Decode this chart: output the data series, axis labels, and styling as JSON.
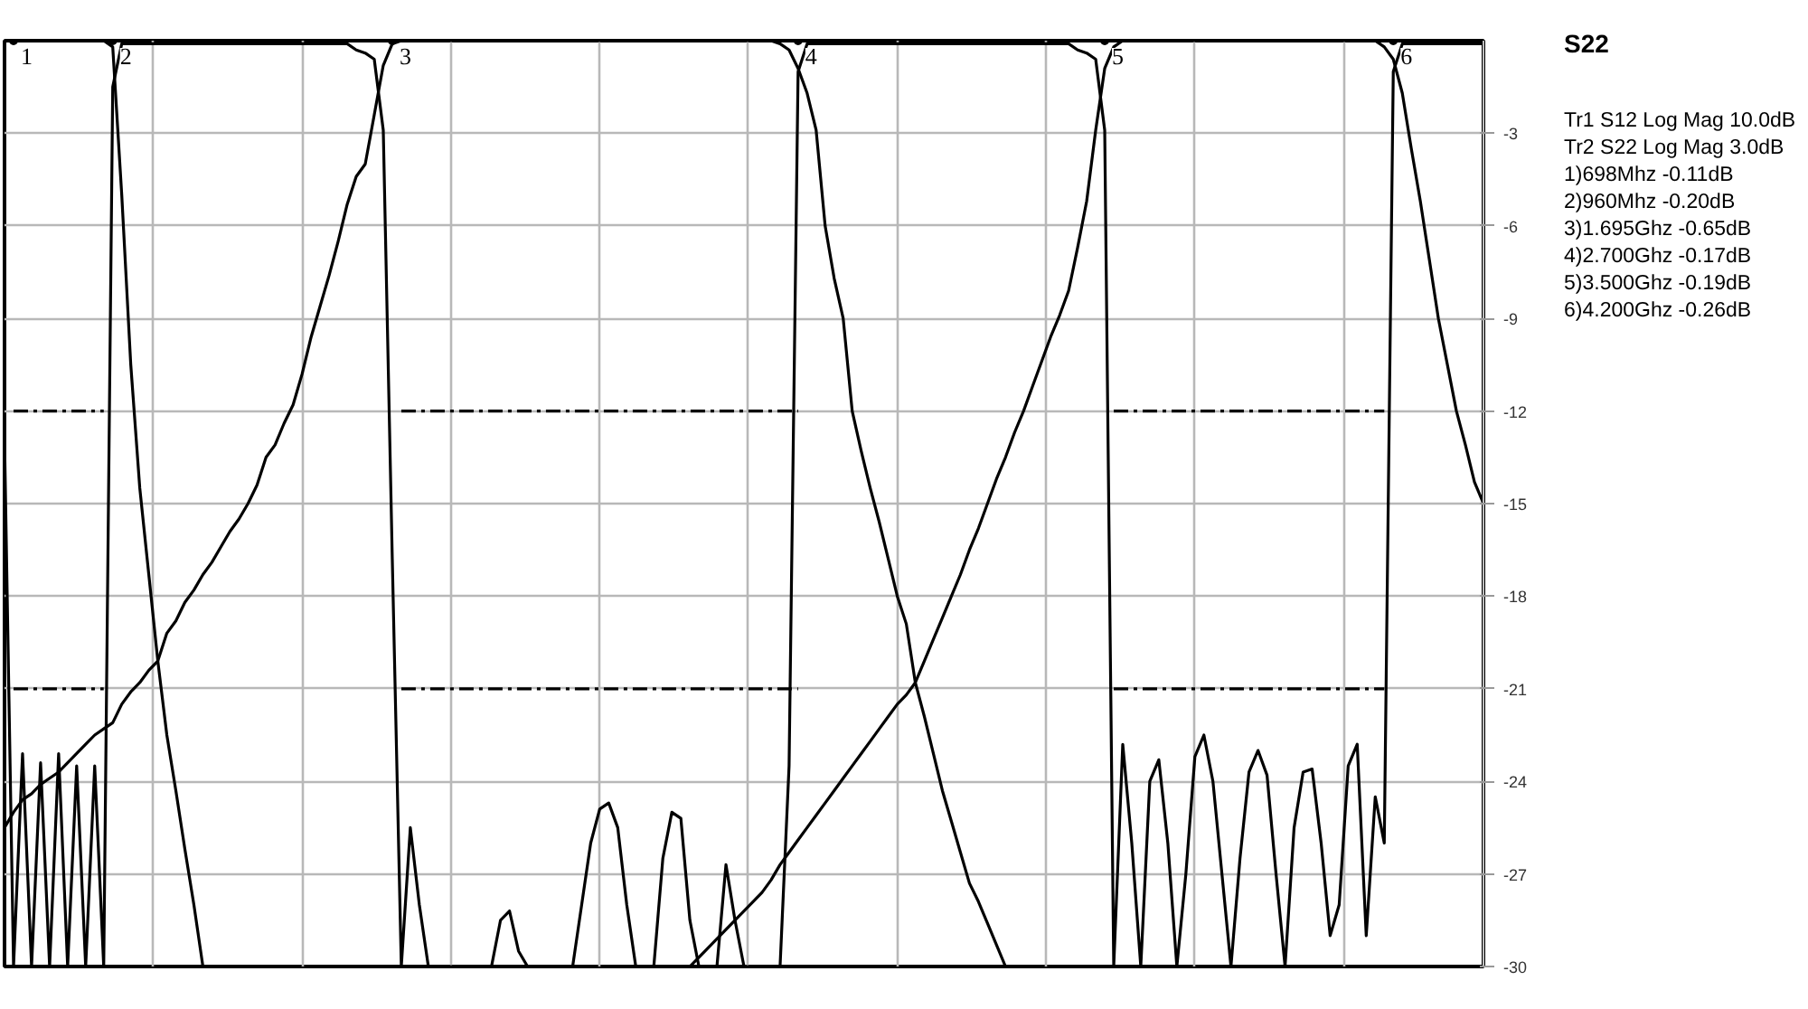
{
  "chart_data": {
    "type": "line",
    "categories": [
      null,
      null,
      null,
      null,
      null,
      null,
      null,
      null,
      null,
      null,
      null,
      null,
      null,
      null,
      null,
      null,
      null,
      null,
      null,
      null,
      null,
      null,
      null,
      null,
      null,
      null,
      null,
      null,
      null,
      null,
      null,
      null,
      null,
      null,
      null,
      null,
      null,
      null,
      null,
      null,
      null,
      null,
      null,
      null,
      null,
      null,
      null,
      null,
      null,
      null,
      null,
      null,
      null,
      null,
      null,
      null,
      null,
      null,
      null,
      null,
      null,
      null,
      null,
      null,
      null,
      null,
      null,
      null,
      null,
      null,
      null,
      null,
      null,
      null,
      null,
      null,
      null,
      null,
      null,
      null,
      null,
      null,
      null,
      null,
      null,
      null,
      null,
      null,
      null,
      null,
      null,
      null,
      null,
      null,
      null,
      null,
      null,
      null,
      null,
      null,
      null,
      null,
      null,
      null,
      null,
      null,
      null,
      null,
      null,
      null,
      null,
      null,
      null,
      null,
      null,
      null,
      null,
      null,
      null,
      null,
      null,
      null,
      null,
      null,
      null,
      null,
      null,
      null,
      null,
      null,
      null,
      null,
      null,
      null,
      null,
      null,
      null,
      null,
      null,
      null,
      null,
      null,
      null,
      null,
      null,
      null,
      null,
      null,
      null,
      null,
      null,
      null,
      null,
      null,
      null,
      null,
      null,
      null,
      null,
      null,
      null,
      null,
      null,
      null,
      null
    ],
    "ylim": [
      -30,
      0
    ],
    "yticks": [
      -3,
      -6,
      -9,
      -12,
      -15,
      -18,
      -21,
      -24,
      -27,
      -30
    ],
    "grid": true,
    "marker": "none",
    "line_style": "solid",
    "series": [
      {
        "color": "#000000",
        "values": [
          -12.9,
          -30,
          -23.1,
          -30,
          -23.4,
          -30,
          -23.1,
          -30,
          -23.5,
          -30,
          -23.5,
          -30,
          -1.5,
          -0.1,
          -0.1,
          -0.1,
          -0.1,
          -0.1,
          -0.1,
          -0.1,
          -0.1,
          -0.1,
          -0.1,
          -0.1,
          -0.1,
          -0.1,
          -0.1,
          -0.1,
          -0.1,
          -0.1,
          -0.1,
          -0.1,
          -0.1,
          -0.1,
          -0.1,
          -0.1,
          -0.1,
          -0.1,
          -0.1,
          -0.3,
          -0.4,
          -0.6,
          -2.9,
          -16.8,
          -30,
          -25.5,
          -28,
          -30,
          -30,
          -30,
          -30,
          -30,
          -30,
          -30,
          -30,
          -28.5,
          -28.2,
          -29.5,
          -30,
          -30,
          -30,
          -30,
          -30,
          -30,
          -28,
          -26,
          -24.9,
          -24.7,
          -25.5,
          -28,
          -30,
          -30,
          -30,
          -26.5,
          -25,
          -25.2,
          -28.5,
          -30,
          -30,
          -30,
          -26.7,
          -28.5,
          -30,
          -30,
          -30,
          -30,
          -30,
          -23.5,
          -1,
          -0.1,
          -0.1,
          -0.1,
          -0.1,
          -0.1,
          -0.1,
          -0.1,
          -0.1,
          -0.1,
          -0.1,
          -0.1,
          -0.1,
          -0.1,
          -0.1,
          -0.1,
          -0.1,
          -0.1,
          -0.1,
          -0.1,
          -0.1,
          -0.1,
          -0.1,
          -0.1,
          -0.1,
          -0.1,
          -0.1,
          -0.1,
          -0.1,
          -0.1,
          -0.1,
          -0.3,
          -0.4,
          -0.6,
          -2.9,
          -30,
          -22.8,
          -26,
          -30,
          -24,
          -23.3,
          -26,
          -30,
          -27,
          -23.2,
          -22.5,
          -24,
          -27,
          -30,
          -26.5,
          -23.7,
          -23.0,
          -23.8,
          -27,
          -30,
          -25.5,
          -23.7,
          -23.6,
          -26,
          -29,
          -28,
          -23.5,
          -22.8,
          -29,
          -24.5,
          -26,
          -1,
          -0.1,
          -0.1,
          -0.1,
          -0.1,
          -0.1,
          -0.1,
          -0.1,
          -0.1,
          -0.1,
          -0.1
        ]
      },
      {
        "color": "#000000",
        "values": [
          0,
          0,
          0,
          0,
          0,
          0,
          0,
          0,
          0,
          0,
          0,
          0,
          -0.2,
          -5,
          -10.5,
          -14.5,
          -17.3,
          -20.1,
          -22.5,
          -24.3,
          -26.2,
          -28,
          -30,
          null,
          null,
          null,
          null,
          null,
          null,
          null,
          null,
          null,
          null,
          null,
          null,
          null,
          null,
          null,
          null,
          null,
          null,
          null,
          null,
          null,
          null,
          null,
          null,
          null,
          null,
          null,
          null,
          null,
          null,
          null,
          null,
          null,
          null,
          null,
          null,
          null,
          null,
          null,
          null,
          null,
          null,
          null,
          null,
          null,
          null,
          null,
          null,
          null,
          null,
          null,
          null,
          null,
          null,
          null,
          null,
          null,
          null,
          null,
          null,
          null,
          null,
          null,
          null,
          null,
          null,
          null,
          null,
          null,
          null,
          null,
          null,
          null,
          null,
          null,
          null,
          null,
          null,
          null,
          null,
          null,
          null,
          null,
          null,
          null,
          null,
          null,
          null,
          null,
          null,
          null,
          null,
          null,
          null,
          null,
          null,
          null,
          null,
          null,
          null,
          null,
          null,
          null,
          null,
          null,
          null,
          null,
          null,
          null,
          null,
          null,
          null,
          null,
          null,
          null,
          null,
          null,
          null,
          null,
          null,
          null,
          null,
          null,
          null,
          null,
          null,
          null,
          null,
          null,
          null,
          null,
          null,
          null,
          null,
          null,
          null,
          null,
          null,
          null,
          null,
          null,
          null
        ]
      },
      {
        "color": "#000000",
        "values": [
          -25.5,
          -25.0,
          -24.6,
          -24.4,
          -24.1,
          -23.9,
          -23.7,
          -23.4,
          -23.1,
          -22.8,
          -22.5,
          -22.3,
          -22.1,
          -21.5,
          -21.1,
          -20.8,
          -20.4,
          -20.1,
          -19.2,
          -18.8,
          -18.2,
          -17.8,
          -17.3,
          -16.9,
          -16.4,
          -15.9,
          -15.5,
          -15.0,
          -14.4,
          -13.5,
          -13.1,
          -12.4,
          -11.8,
          -10.8,
          -9.6,
          -8.6,
          -7.6,
          -6.5,
          -5.3,
          -4.4,
          -4.0,
          -2.4,
          -0.8,
          -0.1,
          0,
          0,
          0,
          0,
          0,
          0,
          0,
          0,
          0,
          0,
          0,
          0,
          0,
          0,
          0,
          0,
          0,
          0,
          0,
          0,
          0,
          0,
          0,
          0,
          0,
          0,
          0,
          0,
          0,
          0,
          0,
          0,
          0,
          0,
          0,
          0,
          0,
          0,
          0,
          0,
          0,
          0,
          -0.1,
          -0.3,
          -0.9,
          -1.7,
          -2.9,
          -6.0,
          -7.7,
          -9.0,
          -12.0,
          -13.3,
          -14.5,
          -15.6,
          -16.8,
          -18.0,
          -18.9,
          -20.8,
          -21.9,
          -23.1,
          -24.3,
          -25.3,
          -26.3,
          -27.3,
          -27.9,
          -28.6,
          -29.3,
          -30,
          null,
          null,
          null,
          null,
          null,
          null,
          null,
          null,
          null,
          null,
          null,
          null,
          null,
          null,
          null,
          null,
          null,
          null,
          null,
          null,
          null,
          null,
          null,
          null,
          null,
          null,
          null,
          null,
          null,
          null,
          null,
          null,
          null,
          null,
          null,
          null,
          null,
          null,
          null,
          null,
          null,
          null,
          null,
          null,
          null,
          null,
          null,
          null,
          null,
          null,
          null,
          null,
          null
        ]
      },
      {
        "color": "#000000",
        "values": [
          null,
          null,
          null,
          null,
          null,
          null,
          null,
          null,
          null,
          null,
          null,
          null,
          null,
          null,
          null,
          null,
          null,
          null,
          null,
          null,
          null,
          null,
          null,
          null,
          null,
          null,
          null,
          null,
          null,
          null,
          null,
          null,
          null,
          null,
          null,
          null,
          null,
          null,
          null,
          null,
          null,
          null,
          null,
          null,
          null,
          null,
          null,
          null,
          null,
          null,
          null,
          null,
          null,
          null,
          null,
          null,
          null,
          null,
          null,
          null,
          null,
          null,
          null,
          null,
          null,
          null,
          null,
          null,
          null,
          null,
          null,
          null,
          null,
          null,
          null,
          null,
          -30,
          -29.7,
          -29.4,
          -29.1,
          -28.8,
          -28.5,
          -28.2,
          -27.9,
          -27.6,
          -27.2,
          -26.7,
          -26.3,
          -25.9,
          -25.5,
          -25.1,
          -24.7,
          -24.3,
          -23.9,
          -23.5,
          -23.1,
          -22.7,
          -22.3,
          -21.9,
          -21.5,
          -21.2,
          -20.8,
          -20.1,
          -19.4,
          -18.7,
          -18.0,
          -17.3,
          -16.5,
          -15.8,
          -15.0,
          -14.2,
          -13.5,
          -12.7,
          -12.0,
          -11.2,
          -10.4,
          -9.6,
          -8.9,
          -8.1,
          -6.7,
          -5.2,
          -2.9,
          -0.9,
          -0.2,
          0,
          0,
          0,
          0,
          0,
          0,
          0,
          0,
          0,
          0,
          0,
          0,
          0,
          0,
          0,
          0,
          0,
          0,
          0,
          0,
          0,
          0,
          0,
          0,
          0,
          0,
          0,
          0,
          0,
          -0.2,
          -0.6,
          -1.7,
          -3.5,
          -5.2,
          -7.1,
          -9.0,
          -10.5,
          -12.0,
          -13.1,
          -14.3,
          -15.0
        ]
      },
      {
        "color": "#000000",
        "line_style": "dashed",
        "values": [
          null,
          -12,
          -12,
          -12,
          -12,
          -12,
          -12,
          -12,
          -12,
          -12,
          -12,
          -12,
          null,
          null,
          null,
          null,
          null,
          null,
          null,
          null,
          null,
          null,
          null,
          null,
          null,
          null,
          null,
          null,
          null,
          null,
          null,
          null,
          null,
          null,
          null,
          null,
          null,
          null,
          null,
          null,
          null,
          null,
          null,
          null,
          -12,
          -12,
          -12,
          -12,
          -12,
          -12,
          -12,
          -12,
          -12,
          -12,
          -12,
          -12,
          -12,
          -12,
          -12,
          -12,
          -12,
          -12,
          -12,
          -12,
          -12,
          -12,
          -12,
          -12,
          -12,
          -12,
          -12,
          -12,
          -12,
          -12,
          -12,
          -12,
          -12,
          -12,
          -12,
          -12,
          -12,
          -12,
          -12,
          -12,
          -12,
          -12,
          -12,
          -12,
          -12,
          null,
          null,
          null,
          null,
          null,
          null,
          null,
          null,
          null,
          null,
          null,
          null,
          null,
          null,
          null,
          null,
          null,
          null,
          null,
          null,
          null,
          null,
          null,
          null,
          null,
          null,
          null,
          null,
          null,
          null,
          null,
          null,
          null,
          null,
          -12,
          -12,
          -12,
          -12,
          -12,
          -12,
          -12,
          -12,
          -12,
          -12,
          -12,
          -12,
          -12,
          -12,
          -12,
          -12,
          -12,
          -12,
          -12,
          -12,
          -12,
          -12,
          -12,
          -12,
          -12,
          -12,
          -12,
          -12,
          -12,
          -12,
          -12,
          null,
          null,
          null,
          null,
          null,
          null,
          null,
          null,
          null,
          null,
          null
        ]
      },
      {
        "color": "#000000",
        "line_style": "dashed",
        "values": [
          null,
          -21,
          -21,
          -21,
          -21,
          -21,
          -21,
          -21,
          -21,
          -21,
          -21,
          -21,
          null,
          null,
          null,
          null,
          null,
          null,
          null,
          null,
          null,
          null,
          null,
          null,
          null,
          null,
          null,
          null,
          null,
          null,
          null,
          null,
          null,
          null,
          null,
          null,
          null,
          null,
          null,
          null,
          null,
          null,
          null,
          null,
          -21,
          -21,
          -21,
          -21,
          -21,
          -21,
          -21,
          -21,
          -21,
          -21,
          -21,
          -21,
          -21,
          -21,
          -21,
          -21,
          -21,
          -21,
          -21,
          -21,
          -21,
          -21,
          -21,
          -21,
          -21,
          -21,
          -21,
          -21,
          -21,
          -21,
          -21,
          -21,
          -21,
          -21,
          -21,
          -21,
          -21,
          -21,
          -21,
          -21,
          -21,
          -21,
          -21,
          -21,
          -21,
          null,
          null,
          null,
          null,
          null,
          null,
          null,
          null,
          null,
          null,
          null,
          null,
          null,
          null,
          null,
          null,
          null,
          null,
          null,
          null,
          null,
          null,
          null,
          null,
          null,
          null,
          null,
          null,
          null,
          null,
          null,
          null,
          null,
          null,
          -21,
          -21,
          -21,
          -21,
          -21,
          -21,
          -21,
          -21,
          -21,
          -21,
          -21,
          -21,
          -21,
          -21,
          -21,
          -21,
          -21,
          -21,
          -21,
          -21,
          -21,
          -21,
          -21,
          -21,
          -21,
          -21,
          -21,
          -21,
          -21,
          -21,
          -21,
          null,
          null,
          null,
          null,
          null,
          null,
          null,
          null,
          null,
          null,
          null
        ]
      },
      {
        "type": "scatter",
        "marker": "circle",
        "color": "#000000",
        "name": "1",
        "values": [
          null,
          0,
          null,
          null,
          null,
          null,
          null,
          null,
          null,
          null,
          null,
          null,
          null,
          null,
          null,
          null,
          null,
          null,
          null,
          null,
          null,
          null,
          null,
          null,
          null,
          null,
          null,
          null,
          null,
          null,
          null,
          null,
          null,
          null,
          null,
          null,
          null,
          null,
          null,
          null,
          null,
          null,
          null,
          null,
          null,
          null,
          null,
          null,
          null,
          null,
          null,
          null,
          null,
          null,
          null,
          null,
          null,
          null,
          null,
          null,
          null,
          null,
          null,
          null,
          null,
          null,
          null,
          null,
          null,
          null,
          null,
          null,
          null,
          null,
          null,
          null,
          null,
          null,
          null,
          null,
          null,
          null,
          null,
          null,
          null,
          null,
          null,
          null,
          null,
          null,
          null,
          null,
          null,
          null,
          null,
          null,
          null,
          null,
          null,
          null,
          null,
          null,
          null,
          null,
          null,
          null,
          null,
          null,
          null,
          null,
          null,
          null,
          null,
          null,
          null,
          null,
          null,
          null,
          null,
          null,
          null,
          null,
          null,
          null,
          null,
          null,
          null,
          null,
          null,
          null,
          null,
          null,
          null,
          null,
          null,
          null,
          null,
          null,
          null,
          null,
          null,
          null,
          null,
          null,
          null,
          null,
          null,
          null,
          null,
          null,
          null,
          null,
          null,
          null,
          null,
          null,
          null,
          null,
          null,
          null,
          null,
          null,
          null,
          null,
          null
        ]
      },
      {
        "type": "scatter",
        "marker": "circle",
        "color": "#000000",
        "name": "2",
        "values": [
          null,
          null,
          null,
          null,
          null,
          null,
          null,
          null,
          null,
          null,
          null,
          null,
          0,
          null,
          null,
          null,
          null,
          null,
          null,
          null,
          null,
          null,
          null,
          null,
          null,
          null,
          null,
          null,
          null,
          null,
          null,
          null,
          null,
          null,
          null,
          null,
          null,
          null,
          null,
          null,
          null,
          null,
          null,
          null,
          null,
          null,
          null,
          null,
          null,
          null,
          null,
          null,
          null,
          null,
          null,
          null,
          null,
          null,
          null,
          null,
          null,
          null,
          null,
          null,
          null,
          null,
          null,
          null,
          null,
          null,
          null,
          null,
          null,
          null,
          null,
          null,
          null,
          null,
          null,
          null,
          null,
          null,
          null,
          null,
          null,
          null,
          null,
          null,
          null,
          null,
          null,
          null,
          null,
          null,
          null,
          null,
          null,
          null,
          null,
          null,
          null,
          null,
          null,
          null,
          null,
          null,
          null,
          null,
          null,
          null,
          null,
          null,
          null,
          null,
          null,
          null,
          null,
          null,
          null,
          null,
          null,
          null,
          null,
          null,
          null,
          null,
          null,
          null,
          null,
          null,
          null,
          null,
          null,
          null,
          null,
          null,
          null,
          null,
          null,
          null,
          null,
          null,
          null,
          null,
          null,
          null,
          null,
          null,
          null,
          null,
          null,
          null,
          null,
          null,
          null,
          null,
          null,
          null,
          null,
          null,
          null,
          null,
          null,
          null,
          null
        ]
      },
      {
        "type": "scatter",
        "marker": "circle",
        "color": "#000000",
        "name": "3",
        "values": [
          null,
          null,
          null,
          null,
          null,
          null,
          null,
          null,
          null,
          null,
          null,
          null,
          null,
          null,
          null,
          null,
          null,
          null,
          null,
          null,
          null,
          null,
          null,
          null,
          null,
          null,
          null,
          null,
          null,
          null,
          null,
          null,
          null,
          null,
          null,
          null,
          null,
          null,
          null,
          null,
          null,
          null,
          null,
          0,
          null,
          null,
          null,
          null,
          null,
          null,
          null,
          null,
          null,
          null,
          null,
          null,
          null,
          null,
          null,
          null,
          null,
          null,
          null,
          null,
          null,
          null,
          null,
          null,
          null,
          null,
          null,
          null,
          null,
          null,
          null,
          null,
          null,
          null,
          null,
          null,
          null,
          null,
          null,
          null,
          null,
          null,
          null,
          null,
          null,
          null,
          null,
          null,
          null,
          null,
          null,
          null,
          null,
          null,
          null,
          null,
          null,
          null,
          null,
          null,
          null,
          null,
          null,
          null,
          null,
          null,
          null,
          null,
          null,
          null,
          null,
          null,
          null,
          null,
          null,
          null,
          null,
          null,
          null,
          null,
          null,
          null,
          null,
          null,
          null,
          null,
          null,
          null,
          null,
          null,
          null,
          null,
          null,
          null,
          null,
          null,
          null,
          null,
          null,
          null,
          null,
          null,
          null,
          null,
          null,
          null,
          null,
          null,
          null,
          null,
          null,
          null,
          null,
          null,
          null,
          null,
          null,
          null,
          null,
          null,
          null
        ]
      },
      {
        "type": "scatter",
        "marker": "circle",
        "color": "#000000",
        "name": "4",
        "values": [
          null,
          null,
          null,
          null,
          null,
          null,
          null,
          null,
          null,
          null,
          null,
          null,
          null,
          null,
          null,
          null,
          null,
          null,
          null,
          null,
          null,
          null,
          null,
          null,
          null,
          null,
          null,
          null,
          null,
          null,
          null,
          null,
          null,
          null,
          null,
          null,
          null,
          null,
          null,
          null,
          null,
          null,
          null,
          null,
          null,
          null,
          null,
          null,
          null,
          null,
          null,
          null,
          null,
          null,
          null,
          null,
          null,
          null,
          null,
          null,
          null,
          null,
          null,
          null,
          null,
          null,
          null,
          null,
          null,
          null,
          null,
          null,
          null,
          null,
          null,
          null,
          null,
          null,
          null,
          null,
          null,
          null,
          null,
          null,
          null,
          null,
          null,
          null,
          0,
          null,
          null,
          null,
          null,
          null,
          null,
          null,
          null,
          null,
          null,
          null,
          null,
          null,
          null,
          null,
          null,
          null,
          null,
          null,
          null,
          null,
          null,
          null,
          null,
          null,
          null,
          null,
          null,
          null,
          null,
          null,
          null,
          null,
          null,
          null,
          null,
          null,
          null,
          null,
          null,
          null,
          null,
          null,
          null,
          null,
          null,
          null,
          null,
          null,
          null,
          null,
          null,
          null,
          null,
          null,
          null,
          null,
          null,
          null,
          null,
          null,
          null,
          null,
          null,
          null,
          null,
          null,
          null,
          null,
          null,
          null,
          null,
          null,
          null,
          null,
          null
        ]
      },
      {
        "type": "scatter",
        "marker": "circle",
        "color": "#000000",
        "name": "5",
        "values": [
          null,
          null,
          null,
          null,
          null,
          null,
          null,
          null,
          null,
          null,
          null,
          null,
          null,
          null,
          null,
          null,
          null,
          null,
          null,
          null,
          null,
          null,
          null,
          null,
          null,
          null,
          null,
          null,
          null,
          null,
          null,
          null,
          null,
          null,
          null,
          null,
          null,
          null,
          null,
          null,
          null,
          null,
          null,
          null,
          null,
          null,
          null,
          null,
          null,
          null,
          null,
          null,
          null,
          null,
          null,
          null,
          null,
          null,
          null,
          null,
          null,
          null,
          null,
          null,
          null,
          null,
          null,
          null,
          null,
          null,
          null,
          null,
          null,
          null,
          null,
          null,
          null,
          null,
          null,
          null,
          null,
          null,
          null,
          null,
          null,
          null,
          null,
          null,
          null,
          null,
          null,
          null,
          null,
          null,
          null,
          null,
          null,
          null,
          null,
          null,
          null,
          null,
          null,
          null,
          null,
          null,
          null,
          null,
          null,
          null,
          null,
          null,
          null,
          null,
          null,
          null,
          null,
          null,
          null,
          null,
          null,
          null,
          0,
          null,
          null,
          null,
          null,
          null,
          null,
          null,
          null,
          null,
          null,
          null,
          null,
          null,
          null,
          null,
          null,
          null,
          null,
          null,
          null,
          null,
          null,
          null,
          null,
          null,
          null,
          null,
          null,
          null,
          null,
          null,
          null,
          null,
          null,
          null,
          null,
          null,
          null,
          null,
          null,
          null,
          null
        ]
      },
      {
        "type": "scatter",
        "marker": "circle",
        "color": "#000000",
        "name": "6",
        "values": [
          null,
          null,
          null,
          null,
          null,
          null,
          null,
          null,
          null,
          null,
          null,
          null,
          null,
          null,
          null,
          null,
          null,
          null,
          null,
          null,
          null,
          null,
          null,
          null,
          null,
          null,
          null,
          null,
          null,
          null,
          null,
          null,
          null,
          null,
          null,
          null,
          null,
          null,
          null,
          null,
          null,
          null,
          null,
          null,
          null,
          null,
          null,
          null,
          null,
          null,
          null,
          null,
          null,
          null,
          null,
          null,
          null,
          null,
          null,
          null,
          null,
          null,
          null,
          null,
          null,
          null,
          null,
          null,
          null,
          null,
          null,
          null,
          null,
          null,
          null,
          null,
          null,
          null,
          null,
          null,
          null,
          null,
          null,
          null,
          null,
          null,
          null,
          null,
          null,
          null,
          null,
          null,
          null,
          null,
          null,
          null,
          null,
          null,
          null,
          null,
          null,
          null,
          null,
          null,
          null,
          null,
          null,
          null,
          null,
          null,
          null,
          null,
          null,
          null,
          null,
          null,
          null,
          null,
          null,
          null,
          null,
          null,
          null,
          null,
          null,
          null,
          null,
          null,
          null,
          null,
          null,
          null,
          null,
          null,
          null,
          null,
          null,
          null,
          null,
          null,
          null,
          null,
          null,
          null,
          null,
          null,
          null,
          null,
          null,
          null,
          null,
          null,
          null,
          null,
          0,
          null,
          null,
          null,
          null,
          null,
          null,
          null,
          null,
          null,
          null
        ]
      }
    ],
    "annotations": [
      "S22",
      "Tr1 S12 Log Mag 10.0dB",
      "Tr2 S22 Log Mag 3.0dB",
      "1)698Mhz -0.11dB",
      "2)960Mhz -0.20dB",
      "3)1.695Ghz -0.65dB",
      "4)2.700Ghz -0.17dB",
      "5)3.500Ghz -0.19dB",
      "6)4.200Ghz -0.26dB"
    ]
  }
}
